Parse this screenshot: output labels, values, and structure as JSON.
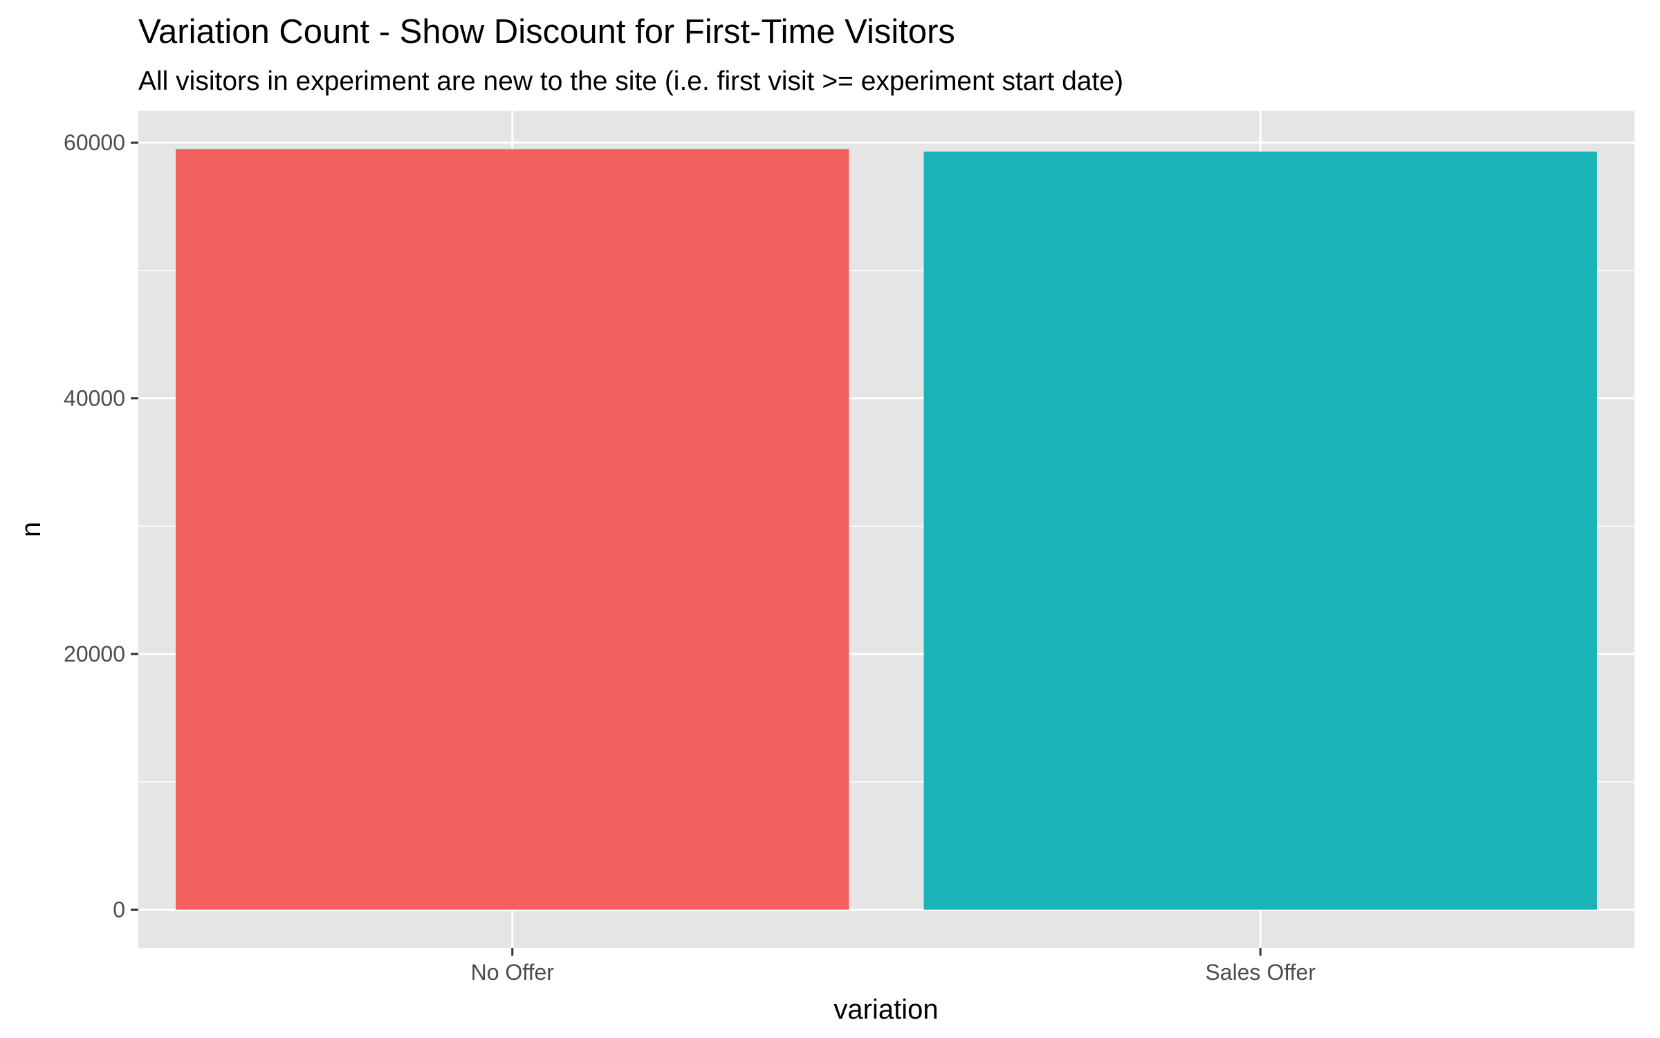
{
  "chart_data": {
    "type": "bar",
    "title": "Variation Count - Show Discount for First-Time Visitors",
    "subtitle": "All visitors in experiment are new to the site (i.e. first visit >= experiment start date)",
    "xlabel": "variation",
    "ylabel": "n",
    "categories": [
      "No Offer",
      "Sales Offer"
    ],
    "values": [
      59500,
      59300
    ],
    "colors": [
      "#F2615D",
      "#1AB3B8"
    ],
    "ylim": [
      -3000,
      62500
    ],
    "yticks": [
      0,
      20000,
      40000,
      60000
    ],
    "yticks_labels": [
      "0",
      "20000",
      "40000",
      "60000"
    ],
    "grid": true,
    "legend": "none",
    "panel_background": "#E5E5E5",
    "grid_color": "#FFFFFF"
  }
}
